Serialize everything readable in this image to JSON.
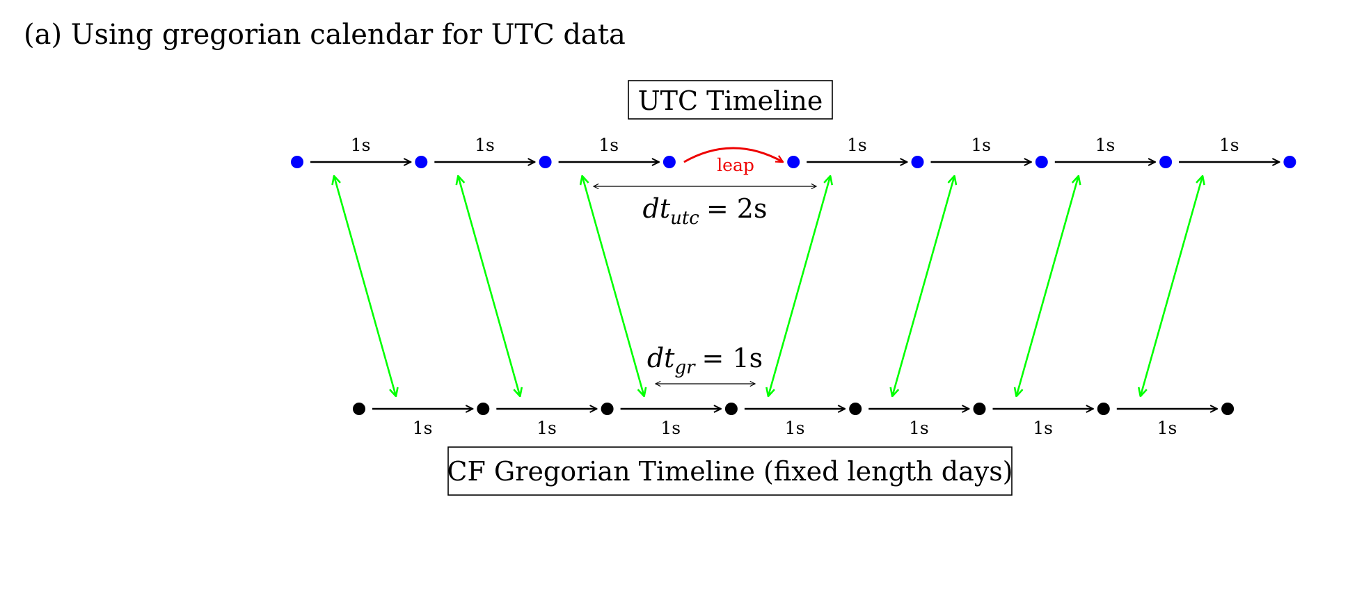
{
  "caption": "(a) Using gregorian calendar for UTC data",
  "utc_timeline": {
    "title": "UTC Timeline",
    "point_count": 9,
    "steps": [
      "1s",
      "1s",
      "1s",
      "leap",
      "1s",
      "1s",
      "1s",
      "1s"
    ],
    "leap_label": "leap",
    "dt_label": {
      "var": "dt",
      "sub": "utc",
      "value": "= 2s"
    },
    "point_color": "#0000ff"
  },
  "gregorian_timeline": {
    "title": "CF Gregorian Timeline (fixed length days)",
    "point_count": 8,
    "steps": [
      "1s",
      "1s",
      "1s",
      "1s",
      "1s",
      "1s",
      "1s"
    ],
    "dt_label": {
      "var": "dt",
      "sub": "gr",
      "value": "= 1s"
    },
    "point_color": "#000000"
  },
  "colors": {
    "utc_point": "#0000ff",
    "gregorian_point": "#000000",
    "mapping_arrow": "#00ff00",
    "leap_arrow": "#ee0000",
    "arrow": "#000000"
  }
}
